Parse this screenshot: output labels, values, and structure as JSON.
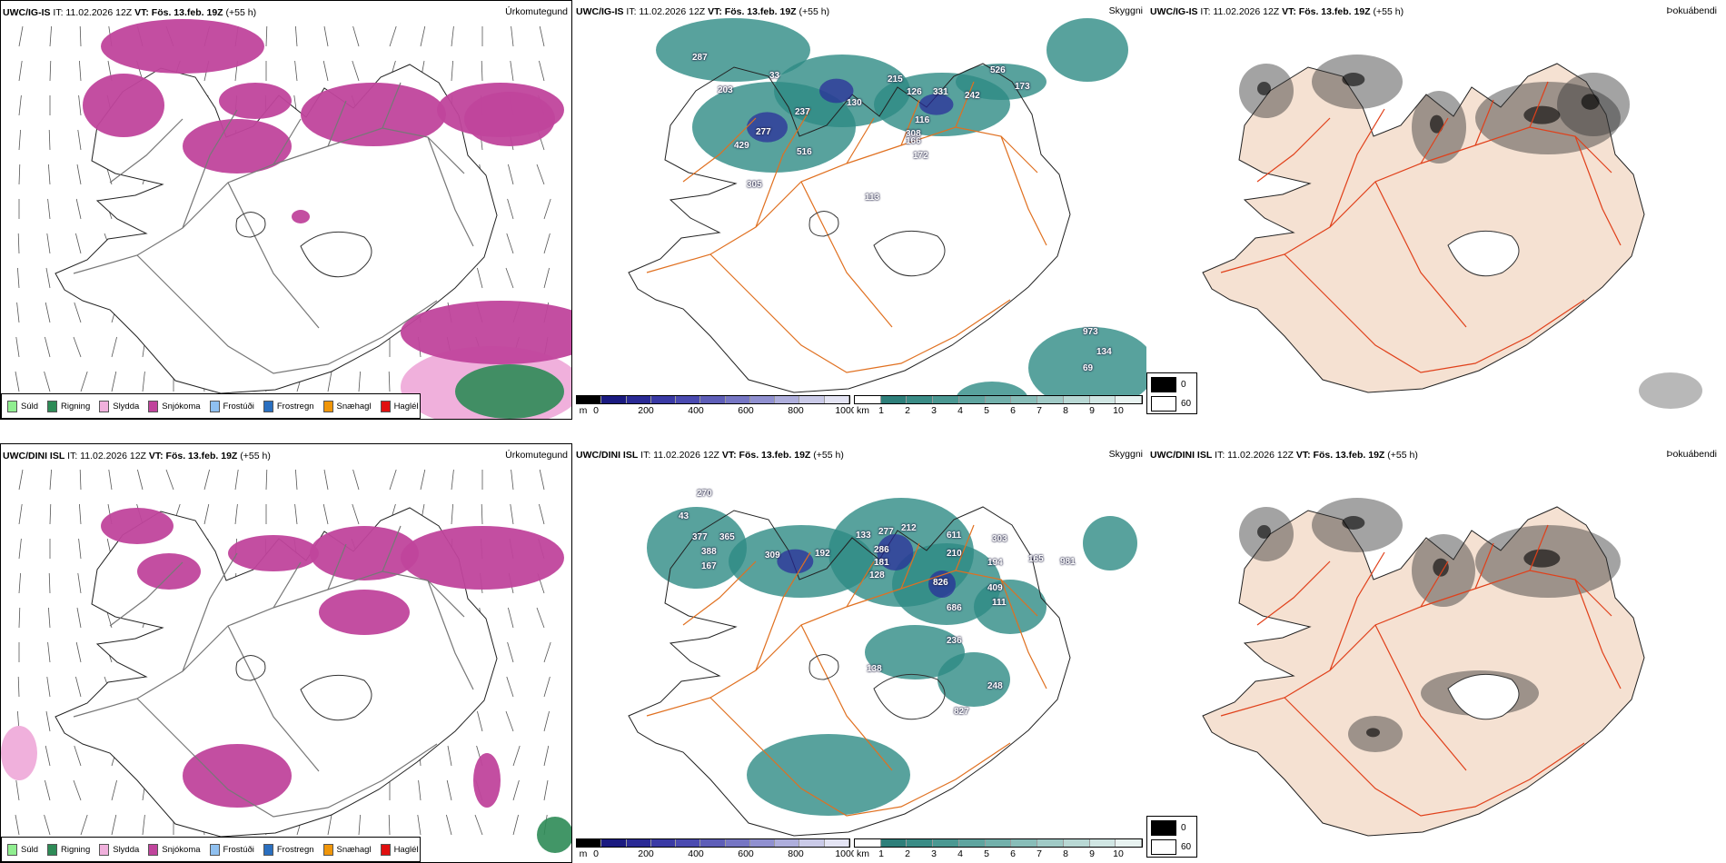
{
  "panels": [
    {
      "model": "UWC/IG-IS",
      "it": "IT: 11.02.2026 12Z",
      "vt": "VT: Fös. 13.feb. 19Z",
      "lead": "(+55 h)",
      "title": "Úrkomutegund"
    },
    {
      "model": "UWC/IG-IS",
      "it": "IT: 11.02.2026 12Z",
      "vt": "VT: Fös. 13.feb. 19Z",
      "lead": "(+55 h)",
      "title": "Skyggni"
    },
    {
      "model": "UWC/IG-IS",
      "it": "IT: 11.02.2026 12Z",
      "vt": "VT: Fös. 13.feb. 19Z",
      "lead": "(+55 h)",
      "title": "Þokuábendi"
    },
    {
      "model": "UWC/DINI ISL",
      "it": "IT: 11.02.2026 12Z",
      "vt": "VT: Fös. 13.feb. 19Z",
      "lead": "(+55 h)",
      "title": "Úrkomutegund"
    },
    {
      "model": "UWC/DINI ISL",
      "it": "IT: 11.02.2026 12Z",
      "vt": "VT: Fös. 13.feb. 19Z",
      "lead": "(+55 h)",
      "title": "Skyggni"
    },
    {
      "model": "UWC/DINI ISL",
      "it": "IT: 11.02.2026 12Z",
      "vt": "VT: Fös. 13.feb. 19Z",
      "lead": "(+55 h)",
      "title": "Þokuábendi"
    }
  ],
  "precip_legend": [
    {
      "label": "Súld",
      "color": "#90ee90"
    },
    {
      "label": "Rigning",
      "color": "#2e8b57"
    },
    {
      "label": "Slydda",
      "color": "#f0b0dc"
    },
    {
      "label": "Snjókoma",
      "color": "#c0449c"
    },
    {
      "label": "Frostúði",
      "color": "#8fc0f0"
    },
    {
      "label": "Frostregn",
      "color": "#2a6fc0"
    },
    {
      "label": "Snæhagl",
      "color": "#f0960a"
    },
    {
      "label": "Haglél",
      "color": "#e01010"
    }
  ],
  "ceiling_bar": {
    "unit": "m",
    "ticks": [
      "0",
      "200",
      "400",
      "600",
      "800",
      "1000"
    ]
  },
  "visibility_bar": {
    "unit": "km",
    "ticks": [
      "1",
      "2",
      "3",
      "4",
      "5",
      "6",
      "7",
      "8",
      "9",
      "10"
    ]
  },
  "fog_legend": {
    "min": "0",
    "max": "60"
  },
  "ceiling_labels_top": [
    "287",
    "33",
    "203",
    "429",
    "277",
    "237",
    "130",
    "215",
    "126",
    "331",
    "242",
    "526",
    "173",
    "308",
    "116",
    "166",
    "172",
    "516",
    "305",
    "113",
    "973",
    "134",
    "69"
  ],
  "ceiling_labels_bottom": [
    "270",
    "43",
    "377",
    "365",
    "388",
    "167",
    "309",
    "192",
    "133",
    "277",
    "286",
    "181",
    "128",
    "212",
    "611",
    "210",
    "303",
    "165",
    "981",
    "826",
    "686",
    "409",
    "111",
    "194",
    "236",
    "138",
    "248",
    "827"
  ],
  "colors": {
    "snow": "#c0449c",
    "rain": "#2e8b57",
    "sleet": "#f0b0dc",
    "visibility": "#2e8b84",
    "ceiling": "#28289a",
    "roads": "#e07020",
    "land_fog": "#f5e1d2"
  }
}
